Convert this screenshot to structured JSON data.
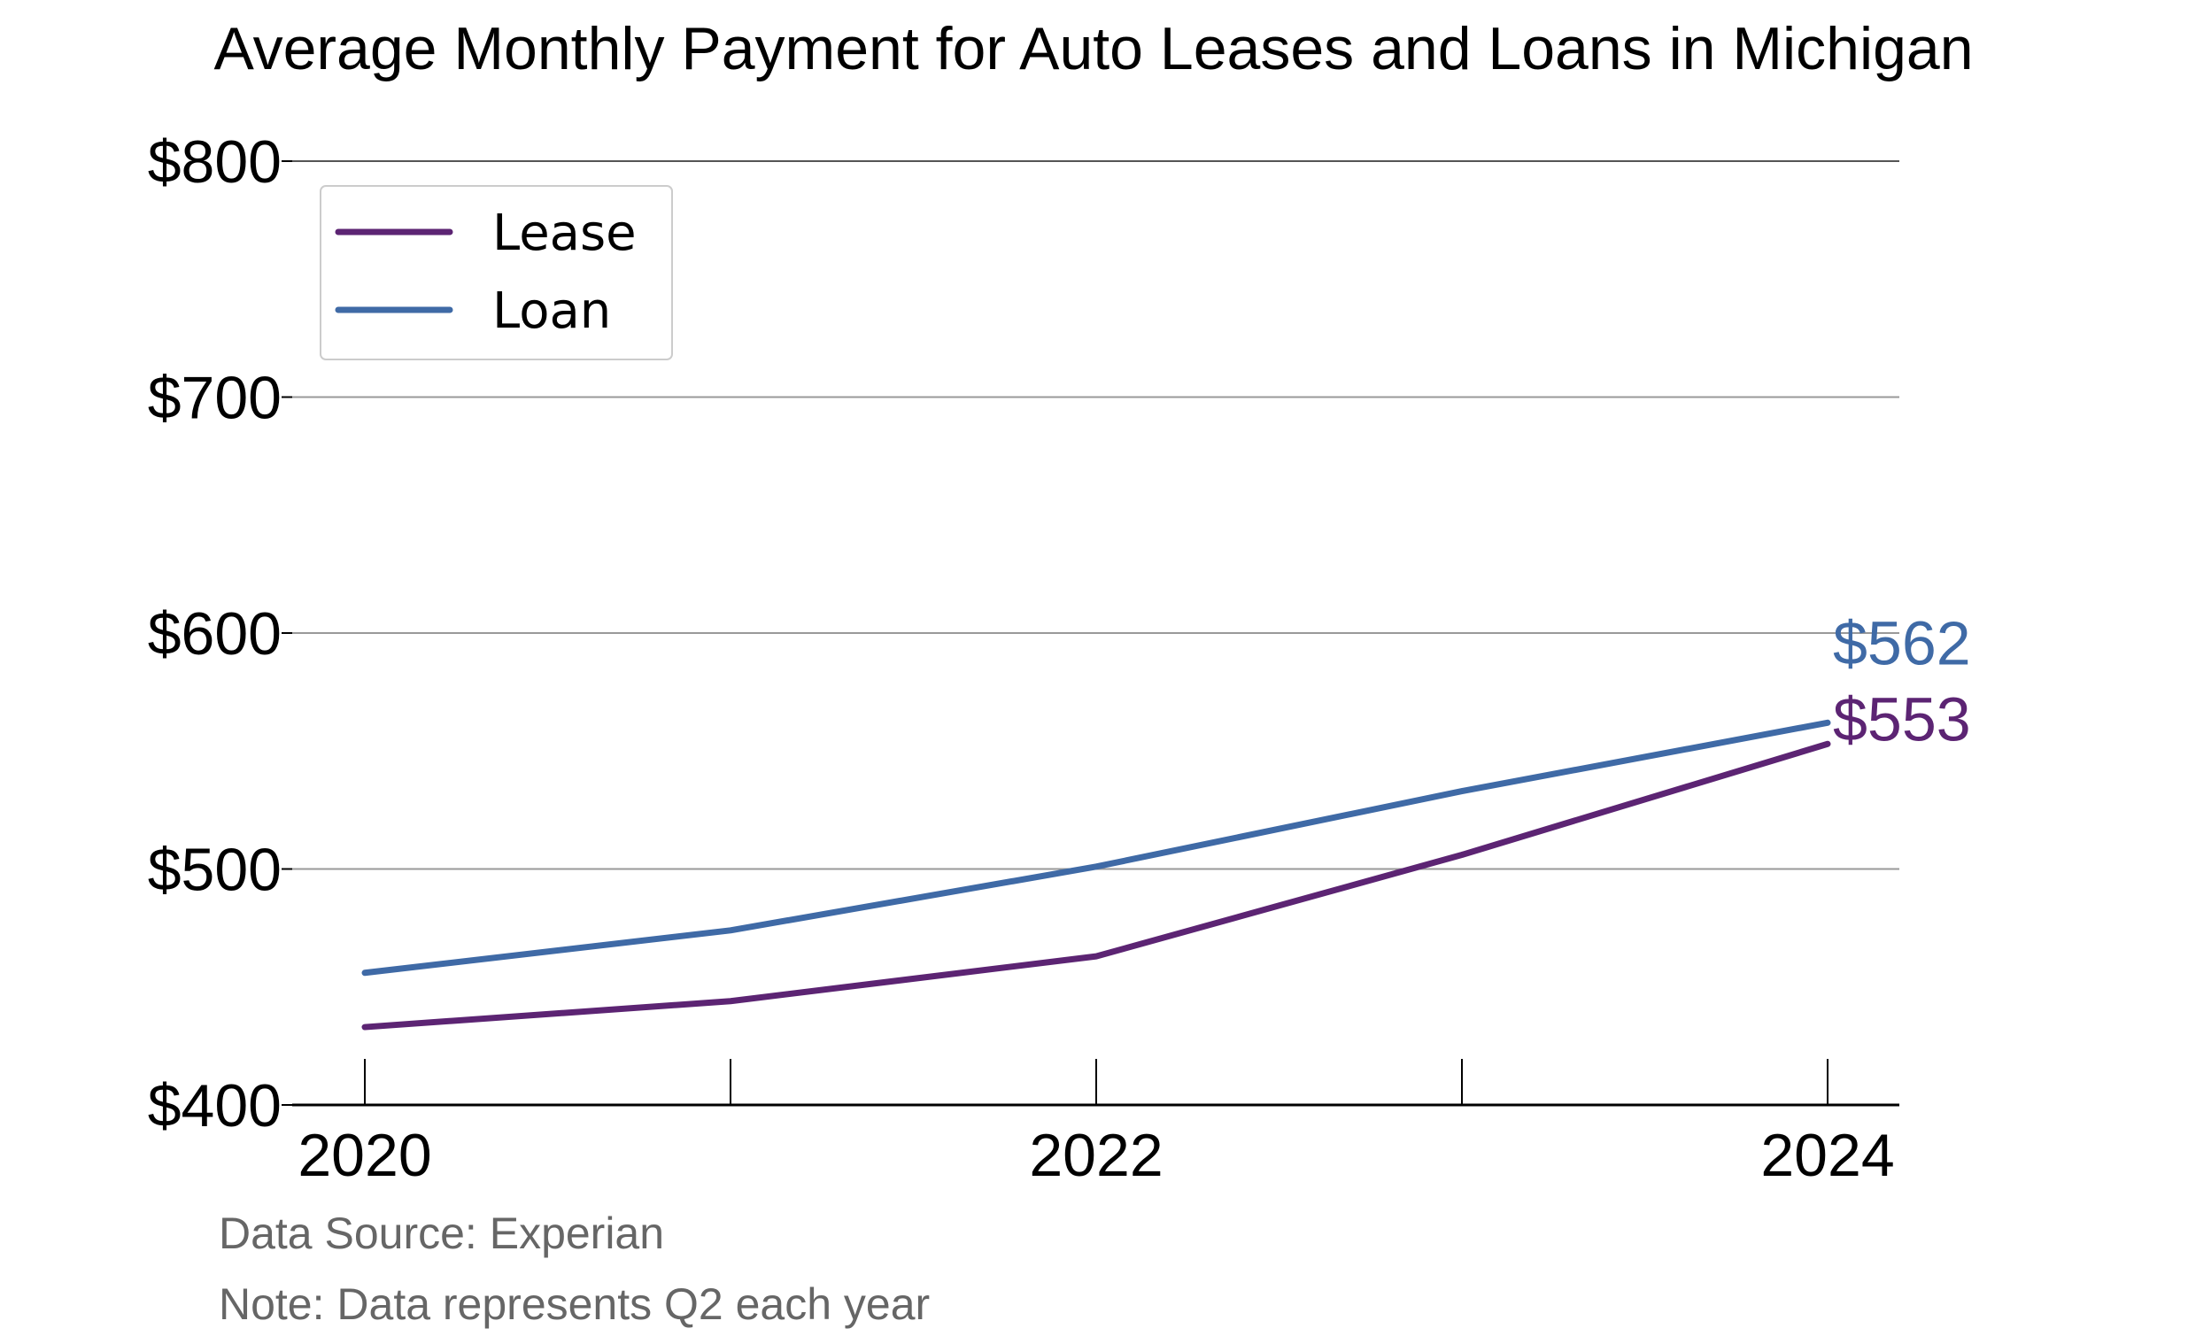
{
  "chart_data": {
    "type": "line",
    "title": "Average Monthly Payment for Auto Leases and Loans in Michigan",
    "x": [
      2020,
      2021,
      2022,
      2023,
      2024
    ],
    "xticks": [
      2020,
      2022,
      2024
    ],
    "xtick_labels": [
      "2020",
      "2022",
      "2024"
    ],
    "xlim": [
      2020,
      2024
    ],
    "ylim": [
      400,
      800
    ],
    "yticks": [
      400,
      500,
      600,
      700,
      800
    ],
    "ytick_labels": [
      "$400",
      "$500",
      "$600",
      "$700",
      "$800"
    ],
    "grid": "horizontal",
    "legend_position": "top-left",
    "series": [
      {
        "name": "Lease",
        "color": "#5c2473",
        "values": [
          433,
          444,
          463,
          506,
          553
        ],
        "end_label": "$553"
      },
      {
        "name": "Loan",
        "color": "#3f6aa6",
        "values": [
          456,
          474,
          501,
          533,
          562
        ],
        "end_label": "$562"
      }
    ],
    "notes": [
      "Data Source: Experian",
      "Note: Data represents Q2 each year"
    ]
  }
}
